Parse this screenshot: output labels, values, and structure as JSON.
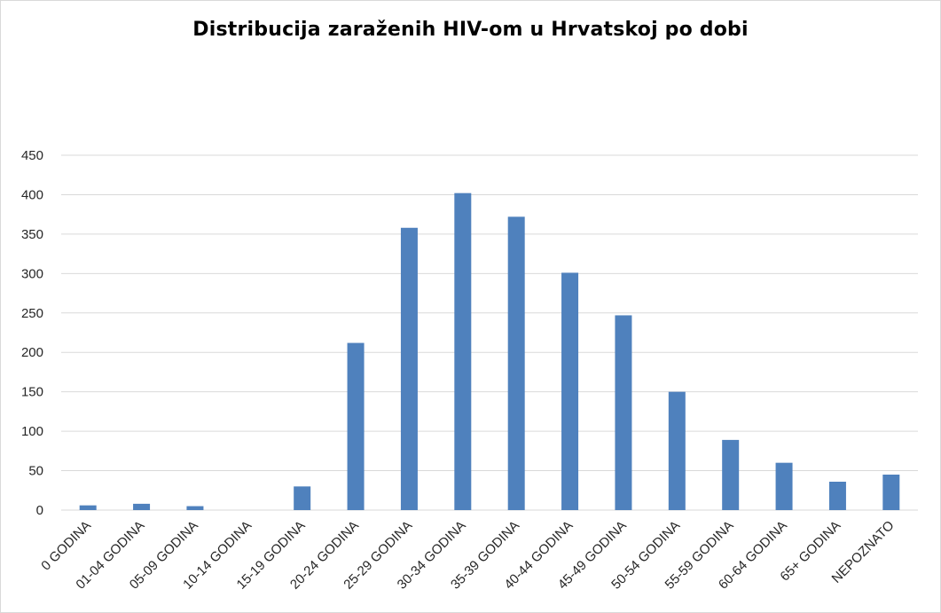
{
  "chart_data": {
    "type": "bar",
    "title": "Distribucija zaraženih HIV-om u Hrvatskoj po dobi",
    "xlabel": "",
    "ylabel": "",
    "categories": [
      "0 GODINA",
      "01-04 GODINA",
      "05-09 GODINA",
      "10-14 GODINA",
      "15-19 GODINA",
      "20-24 GODINA",
      "25-29 GODINA",
      "30-34 GODINA",
      "35-39 GODINA",
      "40-44 GODINA",
      "45-49 GODINA",
      "50-54 GODINA",
      "55-59 GODINA",
      "60-64 GODINA",
      "65+ GODINA",
      "NEPOZNATO"
    ],
    "values": [
      6,
      8,
      5,
      0,
      30,
      212,
      358,
      402,
      372,
      301,
      247,
      150,
      89,
      60,
      36,
      45
    ],
    "ylim": [
      0,
      450
    ],
    "yticks": [
      0,
      50,
      100,
      150,
      200,
      250,
      300,
      350,
      400,
      450
    ],
    "grid": true,
    "legend": "none",
    "colors": {
      "bar": "#4f81bd",
      "grid": "#d9d9d9",
      "text": "#262626"
    }
  }
}
